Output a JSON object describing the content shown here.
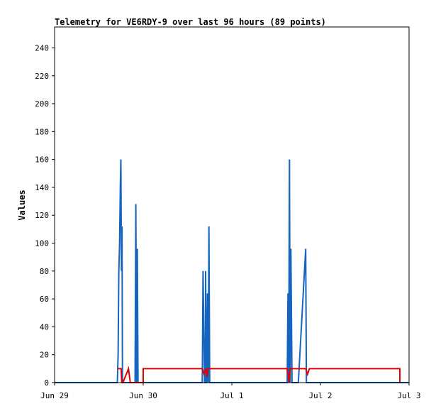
{
  "chart_data": {
    "type": "line",
    "title": "Telemetry for VE6RDY-9 over last 96 hours (89 points)",
    "xlabel": "",
    "ylabel": "Values",
    "x_ticks": [
      "Jun 29",
      "Jun 30",
      "Jul 1",
      "Jul 2",
      "Jul 3"
    ],
    "xlim_hours": [
      0,
      96
    ],
    "ylim": [
      0,
      255
    ],
    "y_ticks": [
      0,
      20,
      40,
      60,
      80,
      100,
      120,
      140,
      160,
      180,
      200,
      220,
      240
    ],
    "grid": false,
    "colors": {
      "blue": "#1565c0",
      "red": "#e00000",
      "black": "#000000"
    },
    "series": [
      {
        "color": "#1565c0",
        "x": [
          0,
          17.0,
          17.2,
          17.4,
          17.6,
          17.8,
          17.95,
          18.1,
          18.25,
          18.4,
          18.6,
          19.0,
          21.8,
          22.0,
          22.2,
          22.4,
          22.6,
          22.8,
          23.0,
          40.0,
          40.2,
          40.4,
          40.6,
          40.8,
          40.9,
          41.0,
          41.1,
          41.2,
          41.4,
          41.6,
          41.8,
          42.0,
          42.2,
          45.0,
          63.0,
          63.2,
          63.4,
          63.6,
          63.8,
          64.0,
          64.3,
          64.6,
          64.8,
          65.0,
          65.2,
          65.5,
          66.0,
          68.0,
          68.2,
          68.4,
          68.8,
          69.0,
          96.0
        ],
        "y": [
          0,
          0,
          20,
          80,
          100,
          140,
          160,
          80,
          112,
          0,
          0,
          0,
          0,
          128,
          0,
          96,
          0,
          0,
          0,
          0,
          80,
          40,
          0,
          0,
          80,
          40,
          0,
          0,
          64,
          0,
          112,
          0,
          0,
          0,
          0,
          64,
          0,
          160,
          0,
          96,
          0,
          0,
          0,
          0,
          0,
          0,
          0,
          96,
          0,
          0,
          0,
          0,
          0
        ]
      },
      {
        "color": "#e00000",
        "x": [
          17.0,
          18.0,
          18.2,
          18.5,
          20.0,
          20.5,
          24.0,
          24.0,
          40.0,
          40.5,
          41.0,
          41.3,
          41.5,
          42.0,
          63.0,
          63.5,
          63.8,
          64.0,
          66.0,
          68.0,
          68.5,
          69.0,
          93.5,
          93.5
        ],
        "y": [
          10,
          10,
          0,
          0,
          10,
          0,
          0,
          10,
          10,
          6,
          10,
          4,
          10,
          10,
          10,
          0,
          10,
          10,
          10,
          10,
          6,
          10,
          10,
          0
        ]
      },
      {
        "color": "#000000",
        "x": [
          0,
          96
        ],
        "y": [
          0,
          0
        ]
      }
    ]
  }
}
